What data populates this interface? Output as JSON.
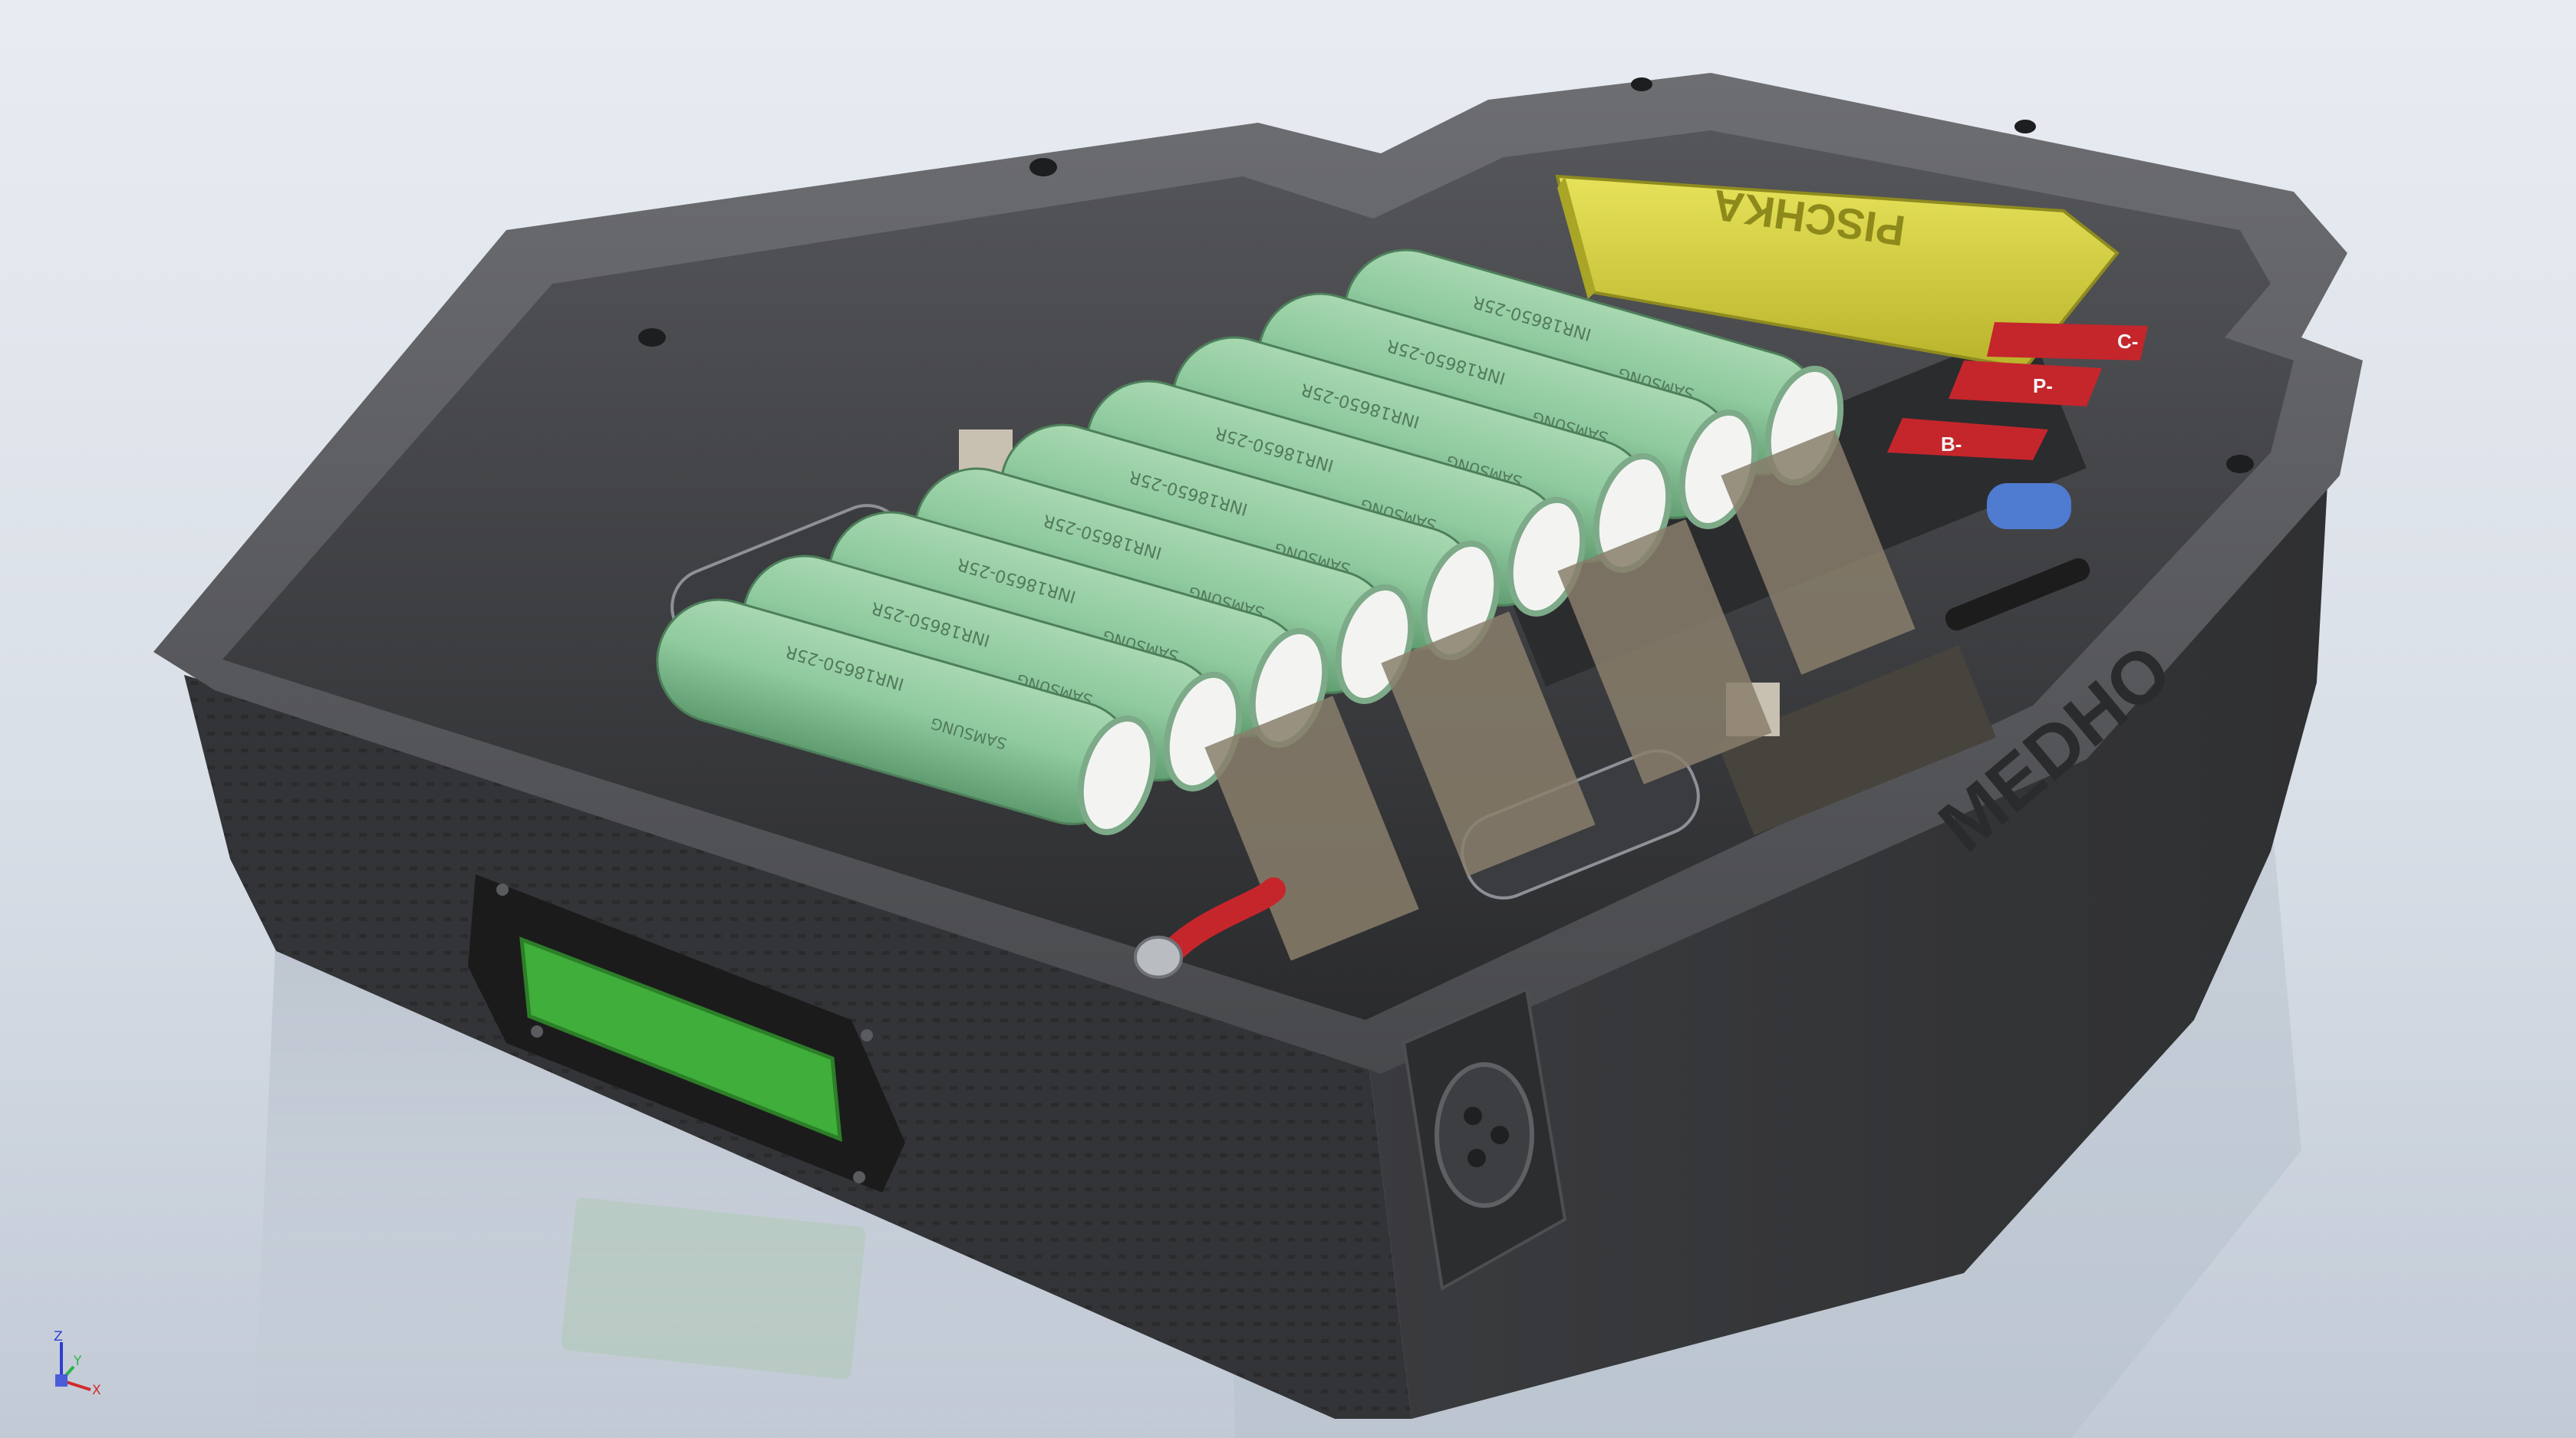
{
  "scene": {
    "background_top": "#e9edf3",
    "background_bottom": "#c9d1dc",
    "case_color": "#3d3e41",
    "cell_color": "#8fca9e",
    "bms_color": "#d7d339",
    "terminal_color": "#c4262c",
    "display_color": "#3fae3a"
  },
  "bms_board": {
    "label": "PISCHKA",
    "terminals": [
      "C-",
      "P-",
      "B-"
    ]
  },
  "cells": {
    "model_text": "INR18650-25R",
    "brand_text": "SAMSUNG",
    "count": 9
  },
  "case_side_text": "MEDHO",
  "axis_triad": {
    "z": "Z",
    "y": "Y",
    "x": "X"
  }
}
